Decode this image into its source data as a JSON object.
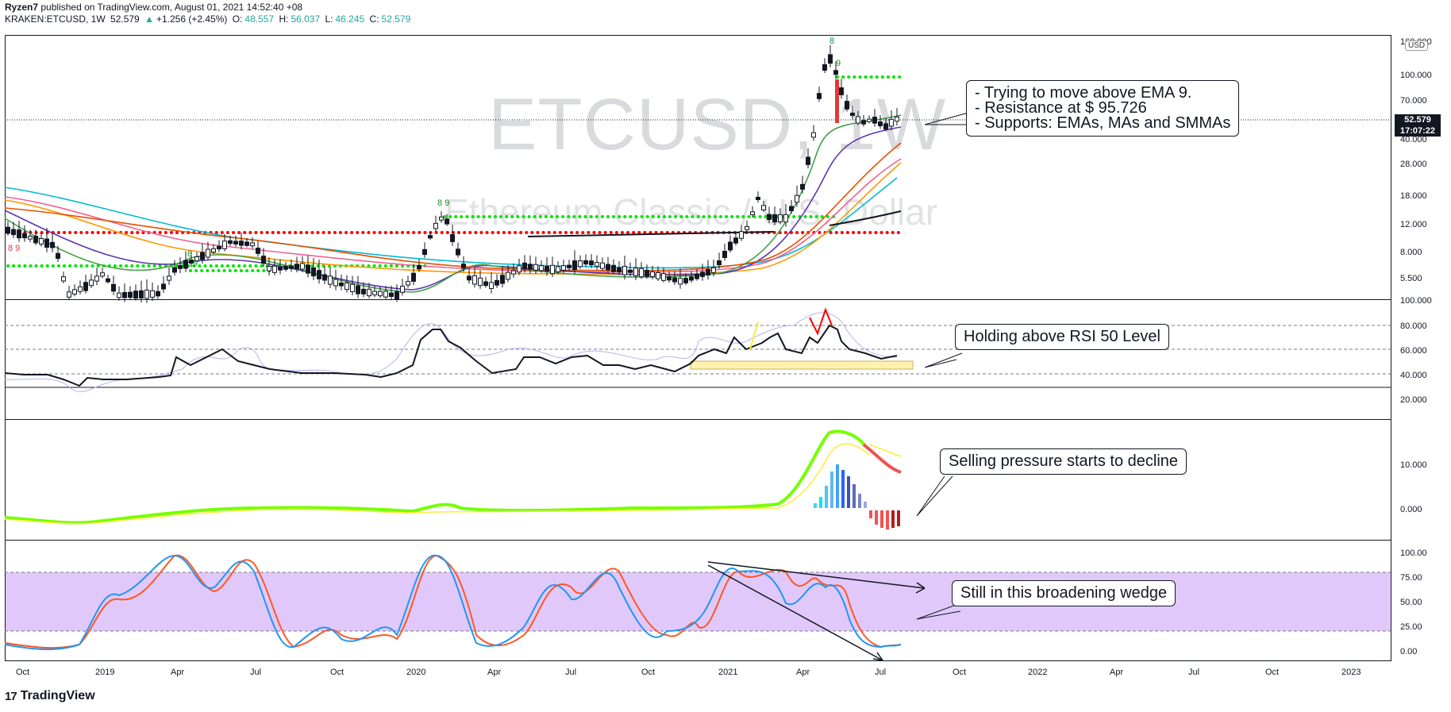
{
  "header": {
    "author": "Ryzen7",
    "published_text": "published on TradingView.com, August 01, 2021 14:52:40 +08",
    "symbol": "KRAKEN:ETCUSD, 1W",
    "last": "52.579",
    "change_arrow": "▲",
    "change": "+1.256 (+2.45%)",
    "o_label": "O:",
    "o_val": "48.557",
    "h_label": "H:",
    "h_val": "56.037",
    "l_label": "L:",
    "l_val": "46.245",
    "c_label": "C:",
    "c_val": "52.579"
  },
  "watermark": {
    "symbol": "ETCUSD, 1W",
    "name": "Ethereum Classic / U.S. Dollar"
  },
  "price_axis": {
    "labels": [
      "160.000",
      "100.000",
      "70.000",
      "40.000",
      "28.000",
      "18.000",
      "12.000",
      "8.000",
      "5.500"
    ],
    "currency": "USD",
    "current_price": "52.579",
    "countdown": "17:07:22"
  },
  "rsi_axis": {
    "labels": [
      "100.000",
      "80.000",
      "60.000",
      "40.000",
      "20.000"
    ]
  },
  "macd_axis": {
    "labels": [
      "10.000",
      "0.000"
    ]
  },
  "stoch_axis": {
    "labels": [
      "100.00",
      "75.00",
      "50.00",
      "25.00",
      "0.00"
    ]
  },
  "time_axis": {
    "labels": [
      "Oct",
      "2019",
      "Apr",
      "Jul",
      "Oct",
      "2020",
      "Apr",
      "Jul",
      "Oct",
      "2021",
      "Apr",
      "Jul",
      "Oct",
      "2022",
      "Apr",
      "Jul",
      "Oct",
      "2023"
    ]
  },
  "annotations": {
    "price_note": "- Trying to move above EMA 9.\n- Resistance at $ 95.726\n- Supports: EMAs, MAs and SMMAs",
    "rsi_note": "Holding above RSI 50 Level",
    "macd_note": "Selling pressure starts to decline",
    "stoch_note": "Still in this broadening wedge"
  },
  "td_labels": [
    "8",
    "9",
    "8 9",
    "8",
    "9",
    "8 9"
  ],
  "brand": {
    "logo": "17",
    "name": "TradingView"
  },
  "colors": {
    "up": "#26a69a",
    "down": "#131722",
    "green_dots": "#00e600",
    "red_dots": "#ff0000",
    "stoch_k": "#2196f3",
    "stoch_d": "#ff5722",
    "stoch_band": "#e1c8fa",
    "rsi_line": "#131722",
    "rsi_light": "#b7b2f0"
  },
  "chart_data": {
    "type": "line",
    "series": [
      {
        "name": "ETCUSD",
        "x": [
          "2018-10",
          "2018-12",
          "2019-04",
          "2019-07",
          "2019-10",
          "2020-01",
          "2020-02",
          "2020-04",
          "2020-07",
          "2020-10",
          "2021-01",
          "2021-04",
          "2021-05",
          "2021-07"
        ],
        "values": [
          9.5,
          4.0,
          7.0,
          7.5,
          4.5,
          7.0,
          11.5,
          5.0,
          7.0,
          5.0,
          9.0,
          50,
          150,
          52.579
        ]
      }
    ],
    "ylim": [
      4.5,
      160
    ],
    "y_scale": "log"
  }
}
